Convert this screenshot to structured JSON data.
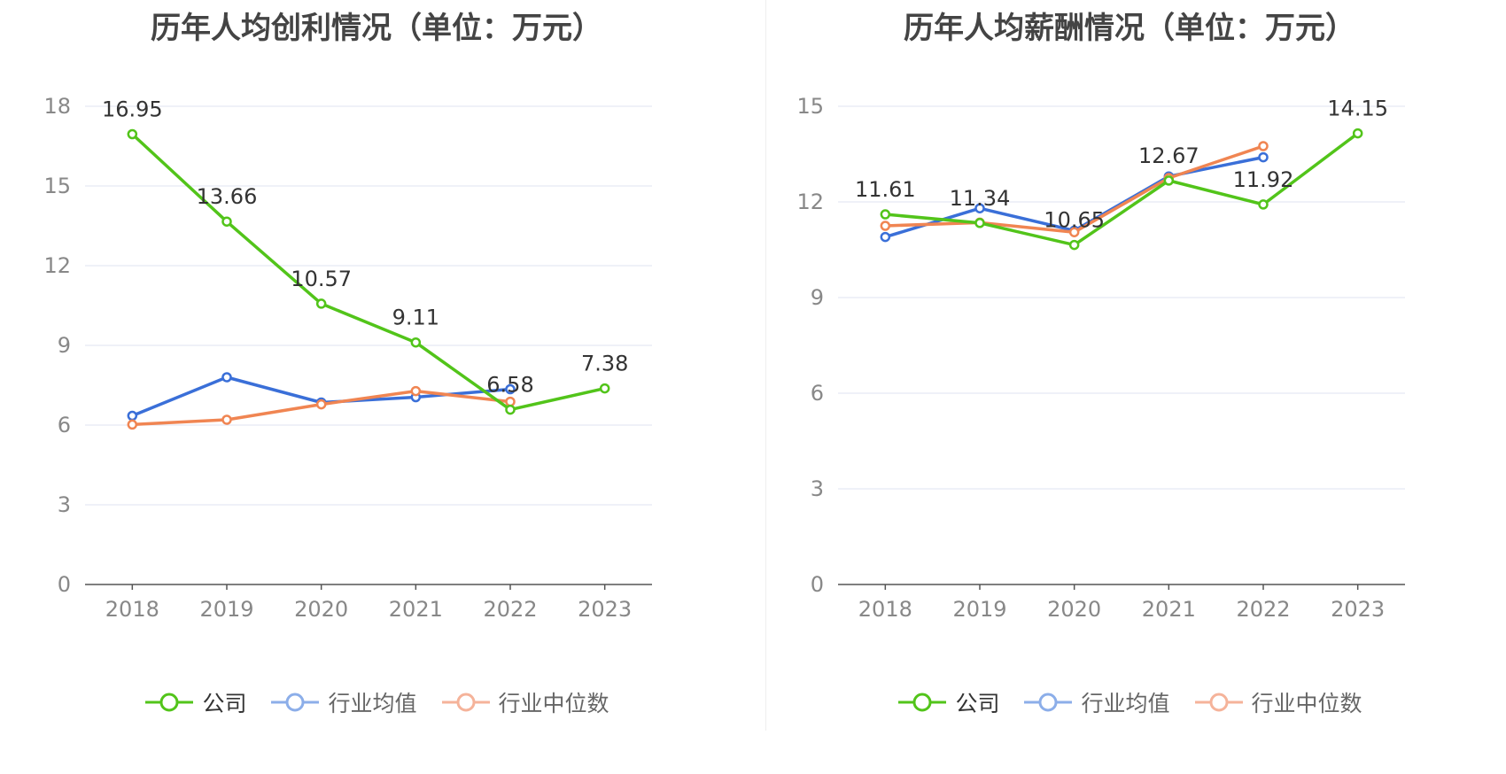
{
  "legend": [
    {
      "label": "公司",
      "color": "#52c41a",
      "icon": "line-circle-icon",
      "active": true
    },
    {
      "label": "行业均值",
      "color": "#8caee9",
      "icon": "line-circle-icon",
      "active": false
    },
    {
      "label": "行业中位数",
      "color": "#f5b39a",
      "icon": "line-circle-icon",
      "active": false
    }
  ],
  "chart_data": [
    {
      "type": "line",
      "title": "历年人均创利情况（单位：万元）",
      "xlabel": "",
      "ylabel": "",
      "categories": [
        "2018",
        "2019",
        "2020",
        "2021",
        "2022",
        "2023"
      ],
      "ylim": [
        0,
        18
      ],
      "yticks": [
        0,
        3,
        6,
        9,
        12,
        15,
        18
      ],
      "grid": true,
      "legend_position": "bottom",
      "series": [
        {
          "name": "公司",
          "color": "#52c41a",
          "values": [
            16.95,
            13.66,
            10.57,
            9.11,
            6.58,
            7.38
          ],
          "labels": [
            "16.95",
            "13.66",
            "10.57",
            "9.11",
            "6.58",
            "7.38"
          ]
        },
        {
          "name": "行业均值",
          "color": "#3a6fd8",
          "values": [
            6.35,
            7.8,
            6.85,
            7.05,
            7.35,
            null
          ]
        },
        {
          "name": "行业中位数",
          "color": "#f08552",
          "values": [
            6.02,
            6.2,
            6.78,
            7.28,
            6.88,
            null
          ]
        }
      ]
    },
    {
      "type": "line",
      "title": "历年人均薪酬情况（单位：万元）",
      "xlabel": "",
      "ylabel": "",
      "categories": [
        "2018",
        "2019",
        "2020",
        "2021",
        "2022",
        "2023"
      ],
      "ylim": [
        0,
        15
      ],
      "yticks": [
        0,
        3,
        6,
        9,
        12,
        15
      ],
      "grid": true,
      "legend_position": "bottom",
      "series": [
        {
          "name": "公司",
          "color": "#52c41a",
          "values": [
            11.61,
            11.34,
            10.65,
            12.67,
            11.92,
            14.15
          ],
          "labels": [
            "11.61",
            "11.34",
            "10.65",
            "12.67",
            "11.92",
            "14.15"
          ]
        },
        {
          "name": "行业均值",
          "color": "#3a6fd8",
          "values": [
            10.9,
            11.8,
            11.1,
            12.8,
            13.4,
            null
          ]
        },
        {
          "name": "行业中位数",
          "color": "#f08552",
          "values": [
            11.25,
            11.35,
            11.05,
            12.75,
            13.75,
            null
          ]
        }
      ]
    }
  ]
}
